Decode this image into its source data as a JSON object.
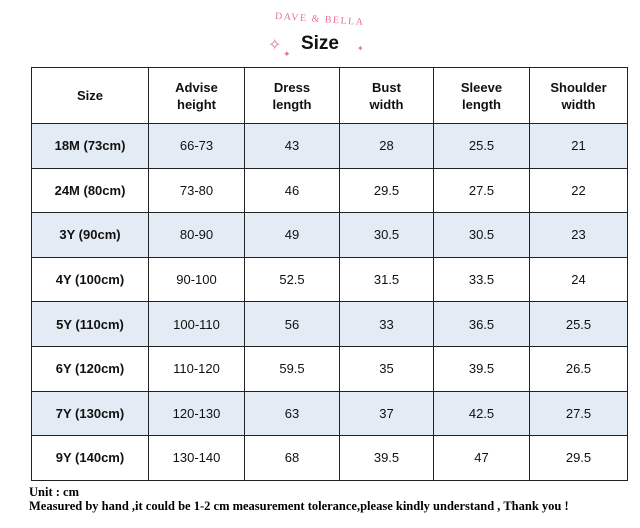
{
  "header": {
    "brand": "DAVE & BELLA",
    "title": "Size"
  },
  "table": {
    "columns": [
      [
        "Size"
      ],
      [
        "Advise",
        "height"
      ],
      [
        "Dress",
        "length"
      ],
      [
        "Bust",
        "width"
      ],
      [
        "Sleeve",
        "length"
      ],
      [
        "Shoulder",
        "width"
      ]
    ],
    "rows": [
      [
        "18M (73cm)",
        "66-73",
        "43",
        "28",
        "25.5",
        "21"
      ],
      [
        "24M (80cm)",
        "73-80",
        "46",
        "29.5",
        "27.5",
        "22"
      ],
      [
        "3Y (90cm)",
        "80-90",
        "49",
        "30.5",
        "30.5",
        "23"
      ],
      [
        "4Y (100cm)",
        "90-100",
        "52.5",
        "31.5",
        "33.5",
        "24"
      ],
      [
        "5Y (110cm)",
        "100-110",
        "56",
        "33",
        "36.5",
        "25.5"
      ],
      [
        "6Y (120cm)",
        "110-120",
        "59.5",
        "35",
        "39.5",
        "26.5"
      ],
      [
        "7Y (130cm)",
        "120-130",
        "63",
        "37",
        "42.5",
        "27.5"
      ],
      [
        "9Y (140cm)",
        "130-140",
        "68",
        "39.5",
        "47",
        "29.5"
      ]
    ]
  },
  "notes": {
    "unit": "Unit : cm",
    "tolerance": "Measured by hand ,it could be 1-2 cm measurement tolerance,please kindly understand , Thank you !"
  },
  "colors": {
    "brand": "#e8708f",
    "row_stripe": "#e3ebf4"
  }
}
